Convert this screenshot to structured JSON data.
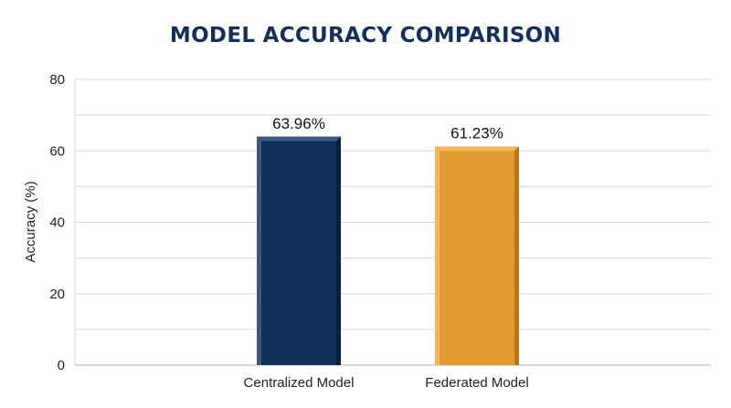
{
  "chart_data": {
    "type": "bar",
    "title": "MODEL ACCURACY COMPARISON",
    "xlabel": "",
    "ylabel": "Accuracy (%)",
    "categories": [
      "Centralized Model",
      "Federated Model"
    ],
    "values": [
      63.96,
      61.23
    ],
    "data_labels": [
      "63.96%",
      "61.23%"
    ],
    "ylim": [
      0,
      80
    ],
    "yticks": [
      0,
      20,
      40,
      60,
      80
    ],
    "grid": true,
    "legend": "none",
    "colors": {
      "bars": [
        "#10305a",
        "#e19b30"
      ],
      "bar_highlight": [
        "#3a5883",
        "#f0b85a"
      ],
      "bar_shadow": [
        "#0a1e3b",
        "#b5761b"
      ],
      "title": "#14305a",
      "grid": "#d6d6d6",
      "axis": "#bdbdbd"
    }
  }
}
